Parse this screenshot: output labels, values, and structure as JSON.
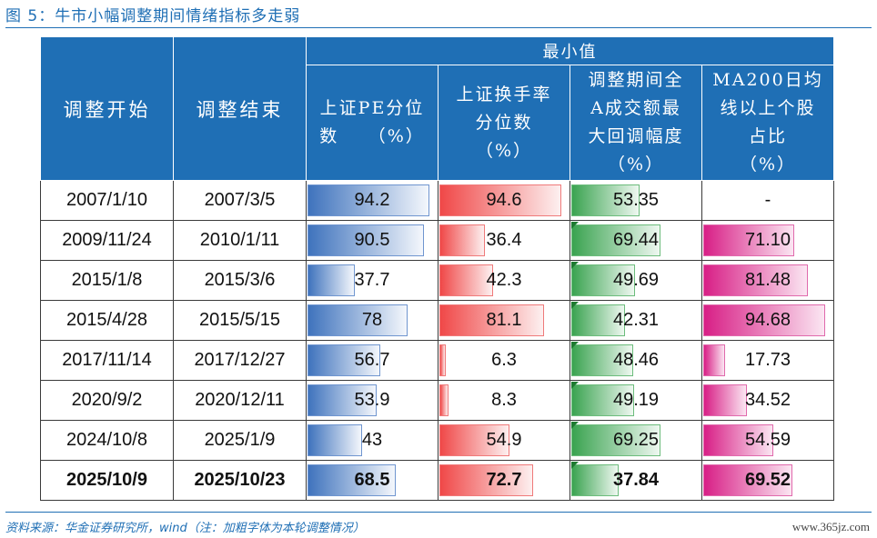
{
  "figure_title": "图 5：牛市小幅调整期间情绪指标多走弱",
  "table": {
    "group_header": "最小值",
    "columns": [
      {
        "label": "调整开始"
      },
      {
        "label": "调整结束"
      },
      {
        "line1": "上证PE分位",
        "line2": "数　　（%）"
      },
      {
        "line1": "上证换手率",
        "line2": "分位数",
        "line3": "（%）"
      },
      {
        "line1": "调整期间全",
        "line2": "A成交额最",
        "line3": "大回调幅度",
        "line4": "（%）"
      },
      {
        "line1": "MA200日均",
        "line2": "线以上个股",
        "line3": "占比",
        "line4": "（%）"
      }
    ],
    "rows": [
      {
        "start": "2007/1/10",
        "end": "2007/3/5",
        "pe": "94.2",
        "turnover": "94.6",
        "drawdown": "53.35",
        "ma200": "-"
      },
      {
        "start": "2009/11/24",
        "end": "2010/1/11",
        "pe": "90.5",
        "turnover": "36.4",
        "drawdown": "69.44",
        "ma200": "71.10"
      },
      {
        "start": "2015/1/8",
        "end": "2015/3/6",
        "pe": "37.7",
        "turnover": "42.3",
        "drawdown": "49.69",
        "ma200": "81.48"
      },
      {
        "start": "2015/4/28",
        "end": "2015/5/15",
        "pe": "78",
        "turnover": "81.1",
        "drawdown": "42.31",
        "ma200": "94.68"
      },
      {
        "start": "2017/11/14",
        "end": "2017/12/27",
        "pe": "56.7",
        "turnover": "6.3",
        "drawdown": "48.46",
        "ma200": "17.73"
      },
      {
        "start": "2020/9/2",
        "end": "2020/12/11",
        "pe": "53.9",
        "turnover": "8.3",
        "drawdown": "49.19",
        "ma200": "34.52"
      },
      {
        "start": "2024/10/8",
        "end": "2025/1/9",
        "pe": "43",
        "turnover": "54.9",
        "drawdown": "69.25",
        "ma200": "54.59"
      },
      {
        "start": "2025/10/9",
        "end": "2025/10/23",
        "pe": "68.5",
        "turnover": "72.7",
        "drawdown": "37.84",
        "ma200": "69.52"
      }
    ]
  },
  "source_note": "资料来源：华金证券研究所，wind（注：加粗字体为本轮调整情况）",
  "watermark": "www.365jz.com",
  "colors": {
    "header_blue": "#1f6fb5",
    "bar_pe": "#3f73bd",
    "bar_turnover": "#f04848",
    "bar_drawdown": "#3aa350",
    "bar_ma200": "#d81f86"
  }
}
